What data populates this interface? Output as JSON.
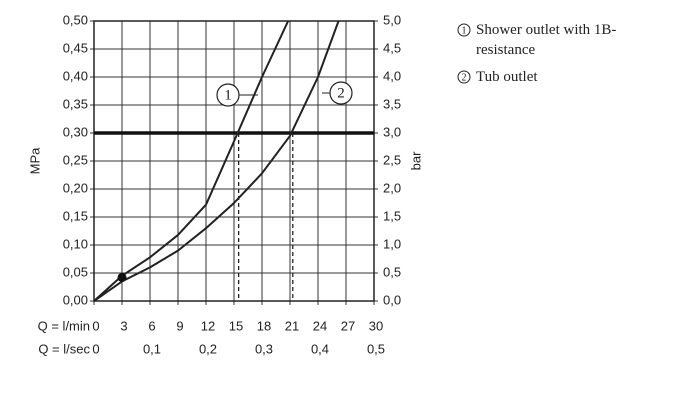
{
  "chart_data": {
    "type": "line",
    "x_label_row1": "Q = l/min",
    "x_label_row2": "Q = l/sec",
    "ylabel": "MPa",
    "y2label": "bar",
    "xlim": [
      0,
      30
    ],
    "xticks": [
      0,
      3,
      6,
      9,
      12,
      15,
      18,
      21,
      24,
      27,
      30
    ],
    "x2lim": [
      0,
      0.5
    ],
    "x2ticks": [
      {
        "value": 0,
        "label": "0"
      },
      {
        "value": 0.1,
        "label": "0,1"
      },
      {
        "value": 0.2,
        "label": "0,2"
      },
      {
        "value": 0.3,
        "label": "0,3"
      },
      {
        "value": 0.4,
        "label": "0,4"
      },
      {
        "value": 0.5,
        "label": "0,5"
      }
    ],
    "ylim": [
      0,
      0.5
    ],
    "yticks": [
      {
        "value": 0,
        "label": "0,00"
      },
      {
        "value": 0.05,
        "label": "0,05"
      },
      {
        "value": 0.1,
        "label": "0,10"
      },
      {
        "value": 0.15,
        "label": "0,15"
      },
      {
        "value": 0.2,
        "label": "0,20"
      },
      {
        "value": 0.25,
        "label": "0,25"
      },
      {
        "value": 0.3,
        "label": "0,30"
      },
      {
        "value": 0.35,
        "label": "0,35"
      },
      {
        "value": 0.4,
        "label": "0,40"
      },
      {
        "value": 0.45,
        "label": "0,45"
      },
      {
        "value": 0.5,
        "label": "0,50"
      }
    ],
    "y2lim": [
      0,
      5
    ],
    "y2ticks": [
      {
        "value": 0,
        "label": "0,0"
      },
      {
        "value": 0.5,
        "label": "0,5"
      },
      {
        "value": 1,
        "label": "1,0"
      },
      {
        "value": 1.5,
        "label": "1,5"
      },
      {
        "value": 2,
        "label": "2,0"
      },
      {
        "value": 2.5,
        "label": "2,5"
      },
      {
        "value": 3,
        "label": "3,0"
      },
      {
        "value": 3.5,
        "label": "3,5"
      },
      {
        "value": 4,
        "label": "4,0"
      },
      {
        "value": 4.5,
        "label": "4,5"
      },
      {
        "value": 5,
        "label": "5,0"
      }
    ],
    "grid": true,
    "reference_y": 0.3,
    "reference_x": [
      15.5,
      21.3
    ],
    "point": {
      "x": 3,
      "y": 0.042
    },
    "series": [
      {
        "marker": "1",
        "name": "Shower outlet with 1B-resistance",
        "color": "#222222",
        "x": [
          0,
          3,
          6,
          9,
          12,
          15,
          18,
          20.8
        ],
        "values": [
          0,
          0.045,
          0.078,
          0.118,
          0.172,
          0.285,
          0.4,
          0.5
        ]
      },
      {
        "marker": "2",
        "name": "Tub outlet",
        "color": "#222222",
        "x": [
          0,
          3,
          6,
          9,
          12,
          15,
          18,
          21,
          24,
          26.2
        ],
        "values": [
          0,
          0.035,
          0.06,
          0.09,
          0.13,
          0.175,
          0.228,
          0.295,
          0.4,
          0.5
        ]
      }
    ]
  }
}
